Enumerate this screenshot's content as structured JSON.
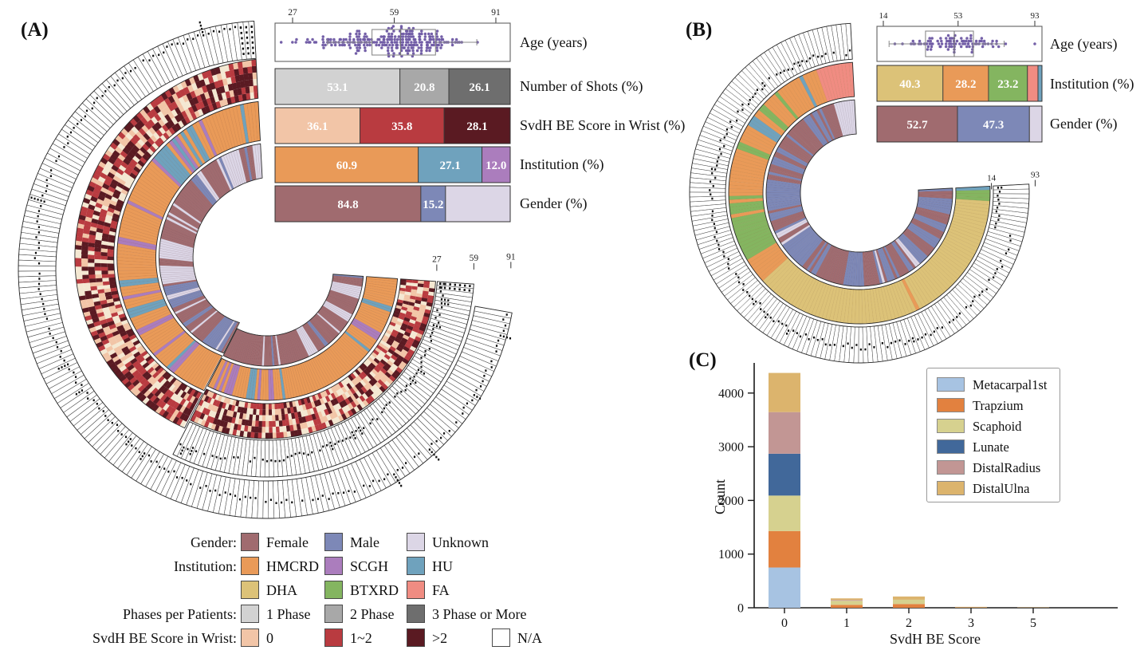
{
  "colors": {
    "Female": "#a06b6f",
    "Male": "#7d88b7",
    "Unknown": "#dcd6e6",
    "HMCRD": "#e99a58",
    "SCGH": "#ab7dbd",
    "HU": "#6fa2bd",
    "DHA": "#dcc278",
    "BTXRD": "#84b560",
    "FA": "#f08c82",
    "1 Phase": "#d2d2d2",
    "2 Phase": "#a8a8a8",
    "3 Phase or More": "#6e6e6e",
    "0": "#f2c5a7",
    "1~2": "#b93b40",
    ">2": "#5a1a22",
    "N/A": "#ffffff",
    "svdh_cream": "#f4e8d2",
    "age_dot": "#6d57a3",
    "trail_dot": "#111111"
  },
  "chart_data": [
    {
      "id": "A",
      "panel_label": "(A)",
      "type": "circular-cohort",
      "description": "Each radial slice is one patient; tracks from outside in: Age, SvdH BE Score in Wrist, Institution, Gender",
      "age_axis": {
        "label": "Age (years)",
        "ticks": [
          27,
          59,
          91
        ],
        "inner_ticks": [
          27,
          59,
          91
        ],
        "box": {
          "q1": 52,
          "median": 61,
          "q3": 72
        },
        "range": [
          23,
          91
        ]
      },
      "bars": [
        {
          "label": "Number of Shots (%)",
          "segments": [
            {
              "key": "1 Phase",
              "value": 53.1,
              "show": "53.1",
              "w": 53.1
            },
            {
              "key": "2 Phase",
              "value": 20.8,
              "show": "20.8",
              "w": 20.8
            },
            {
              "key": "3 Phase or More",
              "value": 26.1,
              "show": "26.1",
              "w": 26.1
            }
          ]
        },
        {
          "label": "SvdH BE Score in Wrist (%)",
          "segments": [
            {
              "key": "0",
              "value": 36.1,
              "show": "36.1",
              "w": 36.1
            },
            {
              "key": "1~2",
              "value": 35.8,
              "show": "35.8",
              "w": 35.8
            },
            {
              "key": ">2",
              "value": 28.1,
              "show": "28.1",
              "w": 28.1
            }
          ]
        },
        {
          "label": "Institution (%)",
          "segments": [
            {
              "key": "HMCRD",
              "value": 60.9,
              "show": "60.9",
              "w": 60.9
            },
            {
              "key": "HU",
              "value": 27.1,
              "show": "27.1",
              "w": 27.1
            },
            {
              "key": "SCGH",
              "value": 12.0,
              "show": "12.0",
              "w": 12.0
            }
          ]
        },
        {
          "label": "Gender (%)",
          "segments": [
            {
              "key": "Female",
              "value": 84.8,
              "show": "84.8",
              "w": 62.0
            },
            {
              "key": "Male",
              "value": 15.2,
              "show": "15.2",
              "w": 10.5
            },
            {
              "key": "Unknown",
              "value": null,
              "show": "",
              "w": 27.5
            }
          ]
        }
      ]
    },
    {
      "id": "B",
      "panel_label": "(B)",
      "type": "circular-cohort",
      "description": "Each radial slice is one patient; tracks from outside in: Age, Institution, Gender",
      "age_axis": {
        "label": "Age (years)",
        "ticks": [
          14,
          53,
          93
        ],
        "end_ticks": [
          14,
          93
        ],
        "box": {
          "q1": 36,
          "median": 51,
          "q3": 61
        },
        "range": [
          14,
          93
        ]
      },
      "bars": [
        {
          "label": "Institution (%)",
          "segments": [
            {
              "key": "DHA",
              "value": 40.3,
              "show": "40.3",
              "w": 40.0
            },
            {
              "key": "HMCRD",
              "value": 28.2,
              "show": "28.2",
              "w": 27.6
            },
            {
              "key": "BTXRD",
              "value": 23.2,
              "show": "23.2",
              "w": 23.6
            },
            {
              "key": "FA",
              "value": null,
              "show": "",
              "w": 6.4
            },
            {
              "key": "HU",
              "value": null,
              "show": "",
              "w": 2.4
            }
          ]
        },
        {
          "label": "Gender (%)",
          "segments": [
            {
              "key": "Female",
              "value": 52.7,
              "show": "52.7",
              "w": 48.8
            },
            {
              "key": "Male",
              "value": 47.3,
              "show": "47.3",
              "w": 43.6
            },
            {
              "key": "Unknown",
              "value": null,
              "show": "",
              "w": 7.6
            }
          ]
        }
      ]
    },
    {
      "id": "C",
      "panel_label": "(C)",
      "type": "bar",
      "stacked": true,
      "xlabel": "SvdH BE Score",
      "ylabel": "Count",
      "categories": [
        "0",
        "1",
        "2",
        "3",
        "5"
      ],
      "yticks": [
        0,
        1000,
        2000,
        3000,
        4000
      ],
      "ylim": [
        0,
        4560
      ],
      "legend_position": "upper right",
      "series": [
        {
          "name": "Metacarpal1st",
          "color": "#a7c3e2",
          "values": [
            750,
            0,
            0,
            0,
            0
          ]
        },
        {
          "name": "Trapzium",
          "color": "#e2813f",
          "values": [
            680,
            55,
            70,
            6,
            3
          ]
        },
        {
          "name": "Scaphoid",
          "color": "#d6d18f",
          "values": [
            660,
            75,
            80,
            5,
            2
          ]
        },
        {
          "name": "Lunate",
          "color": "#41689a",
          "values": [
            780,
            0,
            0,
            0,
            0
          ]
        },
        {
          "name": "DistalRadius",
          "color": "#c29694",
          "values": [
            775,
            15,
            0,
            0,
            0
          ]
        },
        {
          "name": "DistalUlna",
          "color": "#dcb46d",
          "values": [
            730,
            30,
            60,
            6,
            3
          ]
        }
      ]
    }
  ],
  "legend": {
    "rows": [
      {
        "title": "Gender:",
        "items": [
          {
            "key": "Female"
          },
          {
            "key": "Male"
          },
          {
            "key": "Unknown"
          }
        ]
      },
      {
        "title": "Institution:",
        "items": [
          {
            "key": "HMCRD"
          },
          {
            "key": "SCGH"
          },
          {
            "key": "HU"
          }
        ]
      },
      {
        "title": "",
        "items": [
          {
            "key": "DHA"
          },
          {
            "key": "BTXRD"
          },
          {
            "key": "FA"
          }
        ]
      },
      {
        "title": "Phases per Patients:",
        "items": [
          {
            "key": "1 Phase"
          },
          {
            "key": "2 Phase"
          },
          {
            "key": "3 Phase or More"
          }
        ]
      },
      {
        "title": "SvdH BE Score in Wrist:",
        "items": [
          {
            "key": "0"
          },
          {
            "key": "1~2"
          },
          {
            "key": ">2"
          },
          {
            "key": "N/A"
          }
        ]
      }
    ]
  }
}
